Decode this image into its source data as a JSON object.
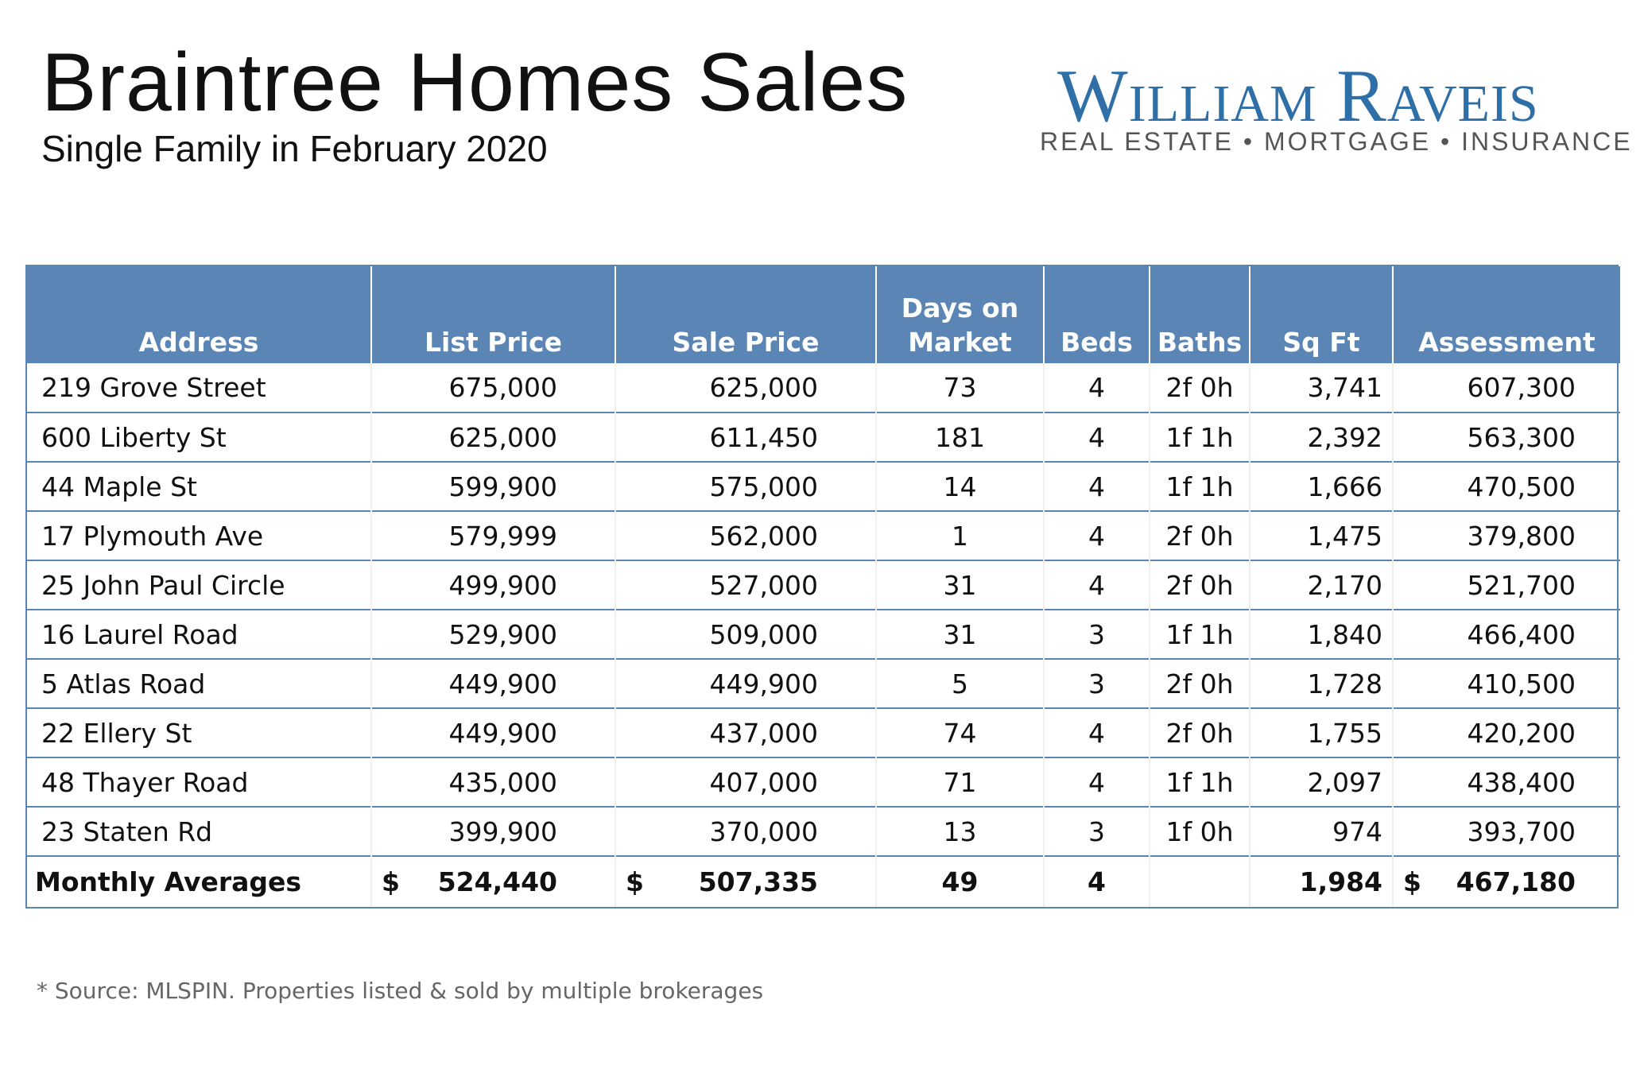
{
  "header": {
    "title": "Braintree Homes Sales",
    "subtitle": "Single Family in February 2020"
  },
  "brand": {
    "name": "William Raveis",
    "tagline": "REAL ESTATE • MORTGAGE • INSURANCE",
    "color": "#2f6fa8"
  },
  "table": {
    "header_color": "#5b85b5",
    "columns": {
      "address": "Address",
      "list_price": "List Price",
      "sale_price": "Sale Price",
      "days_line1": "Days on",
      "days_line2": "Market",
      "beds": "Beds",
      "baths": "Baths",
      "sqft": "Sq Ft",
      "assessment": "Assessment"
    },
    "rows": [
      {
        "address": "219 Grove Street",
        "list": "675,000",
        "sale": "625,000",
        "days": "73",
        "beds": "4",
        "baths": "2f 0h",
        "sqft": "3,741",
        "assessment": "607,300"
      },
      {
        "address": "600 Liberty St",
        "list": "625,000",
        "sale": "611,450",
        "days": "181",
        "beds": "4",
        "baths": "1f 1h",
        "sqft": "2,392",
        "assessment": "563,300"
      },
      {
        "address": "44 Maple St",
        "list": "599,900",
        "sale": "575,000",
        "days": "14",
        "beds": "4",
        "baths": "1f 1h",
        "sqft": "1,666",
        "assessment": "470,500"
      },
      {
        "address": "17 Plymouth Ave",
        "list": "579,999",
        "sale": "562,000",
        "days": "1",
        "beds": "4",
        "baths": "2f 0h",
        "sqft": "1,475",
        "assessment": "379,800"
      },
      {
        "address": "25 John Paul Circle",
        "list": "499,900",
        "sale": "527,000",
        "days": "31",
        "beds": "4",
        "baths": "2f 0h",
        "sqft": "2,170",
        "assessment": "521,700"
      },
      {
        "address": "16 Laurel Road",
        "list": "529,900",
        "sale": "509,000",
        "days": "31",
        "beds": "3",
        "baths": "1f 1h",
        "sqft": "1,840",
        "assessment": "466,400"
      },
      {
        "address": "5 Atlas Road",
        "list": "449,900",
        "sale": "449,900",
        "days": "5",
        "beds": "3",
        "baths": "2f 0h",
        "sqft": "1,728",
        "assessment": "410,500"
      },
      {
        "address": "22 Ellery St",
        "list": "449,900",
        "sale": "437,000",
        "days": "74",
        "beds": "4",
        "baths": "2f 0h",
        "sqft": "1,755",
        "assessment": "420,200"
      },
      {
        "address": "48 Thayer Road",
        "list": "435,000",
        "sale": "407,000",
        "days": "71",
        "beds": "4",
        "baths": "1f 1h",
        "sqft": "2,097",
        "assessment": "438,400"
      },
      {
        "address": "23 Staten Rd",
        "list": "399,900",
        "sale": "370,000",
        "days": "13",
        "beds": "3",
        "baths": "1f 0h",
        "sqft": "974",
        "assessment": "393,700"
      }
    ],
    "averages": {
      "label": "Monthly Averages",
      "currency": "$",
      "list": "524,440",
      "sale": "507,335",
      "days": "49",
      "beds": "4",
      "baths": "",
      "sqft": "1,984",
      "assessment": "467,180"
    }
  },
  "footer": {
    "source": "* Source: MLSPIN. Properties listed & sold by multiple brokerages"
  }
}
